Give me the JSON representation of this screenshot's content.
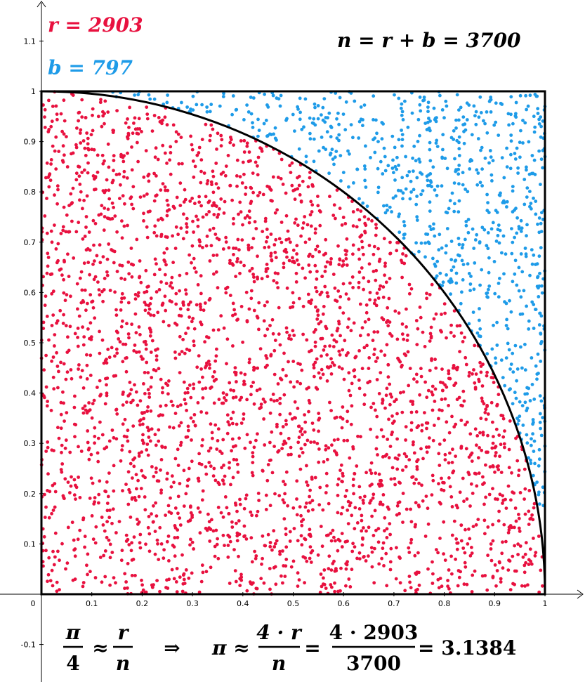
{
  "chart_data": {
    "type": "scatter",
    "title": "",
    "xlabel": "",
    "ylabel": "",
    "xlim": [
      0,
      1
    ],
    "ylim": [
      -0.1,
      1.1
    ],
    "x_ticks": [
      "0",
      "0.1",
      "0.2",
      "0.3",
      "0.4",
      "0.5",
      "0.6",
      "0.7",
      "0.8",
      "0.9",
      "1"
    ],
    "y_ticks": [
      "-0.1",
      "0.1",
      "0.2",
      "0.3",
      "0.4",
      "0.5",
      "0.6",
      "0.7",
      "0.8",
      "0.9",
      "1",
      "1.1"
    ],
    "grid": false,
    "series": [
      {
        "color": "#e8113f",
        "count": 2903,
        "region": "inside quarter circle x^2 + y^2 <= 1"
      },
      {
        "color": "#1e9be8",
        "count": 797,
        "region": "outside quarter circle, inside unit square"
      }
    ],
    "shapes": [
      "unit square [0,1]x[0,1]",
      "quarter circle x^2 + y^2 = 1"
    ]
  },
  "annotations": {
    "r_label": "r = 2903",
    "b_label": "b = 797",
    "n_label": "n = r + b = 3700",
    "formula_pi": "π",
    "formula_4": "4",
    "formula_approx": "≈",
    "formula_r": "r",
    "formula_n": "n",
    "formula_implies": "⇒",
    "formula_pi2": "π ≈",
    "formula_4r": "4 · r",
    "formula_n2": "n",
    "formula_eq": "=",
    "formula_num": "4 · 2903",
    "formula_den": "3700",
    "formula_result": "= 3.1384"
  },
  "colors": {
    "red": "#e8113f",
    "blue": "#1e9be8",
    "axis": "#000000"
  }
}
